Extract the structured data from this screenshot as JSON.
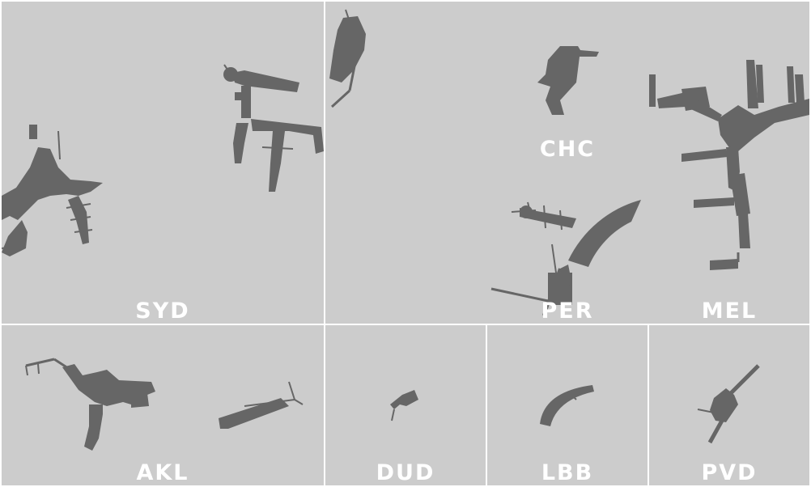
{
  "colors": {
    "background": "#cccccc",
    "terminal": "#666666",
    "label": "#ffffff",
    "divider": "#ffffff"
  },
  "airports": [
    {
      "code": "SYD"
    },
    {
      "code": "PER"
    },
    {
      "code": "CHC"
    },
    {
      "code": "MEL"
    },
    {
      "code": "AKL"
    },
    {
      "code": "DUD"
    },
    {
      "code": "LBB"
    },
    {
      "code": "PVD"
    }
  ]
}
